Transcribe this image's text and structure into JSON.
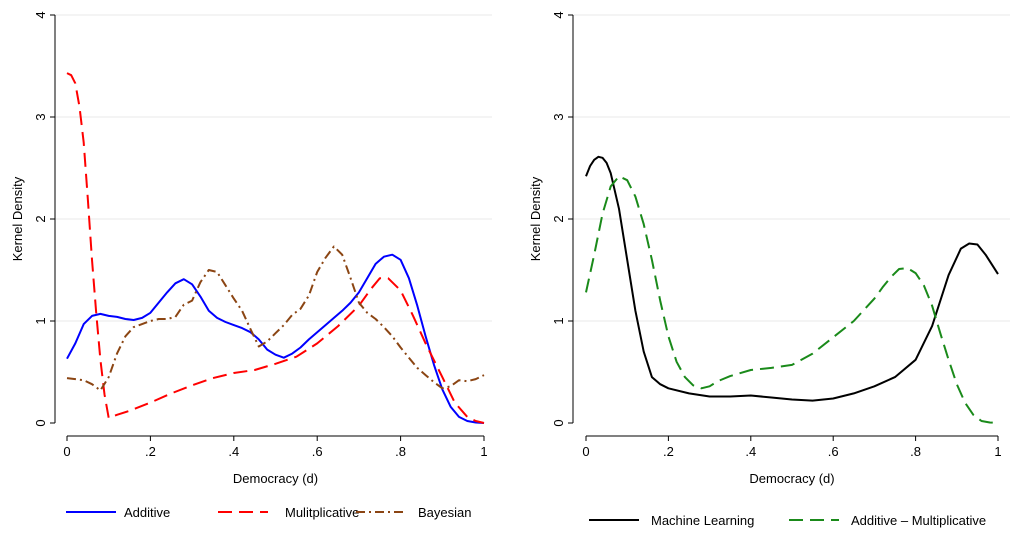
{
  "chart_data": [
    {
      "type": "line",
      "xlabel": "Democracy (d)",
      "ylabel": "Kernel Density",
      "xlim": [
        0,
        1
      ],
      "ylim": [
        0,
        4
      ],
      "x_ticks": [
        0,
        0.2,
        0.4,
        0.6,
        0.8,
        1
      ],
      "x_tick_labels": [
        "0",
        ".2",
        ".4",
        ".6",
        ".8",
        "1"
      ],
      "y_ticks": [
        0,
        1,
        2,
        3,
        4
      ],
      "y_tick_labels": [
        "0",
        "1",
        "2",
        "3",
        "4"
      ],
      "grid": "horizontal",
      "legend_position": "bottom",
      "series": [
        {
          "name": "Additive",
          "color": "#0000ff",
          "dash": "solid",
          "x": [
            0,
            0.02,
            0.04,
            0.06,
            0.08,
            0.1,
            0.12,
            0.14,
            0.16,
            0.18,
            0.2,
            0.22,
            0.24,
            0.26,
            0.28,
            0.3,
            0.32,
            0.34,
            0.36,
            0.38,
            0.4,
            0.42,
            0.44,
            0.46,
            0.48,
            0.5,
            0.52,
            0.54,
            0.56,
            0.58,
            0.6,
            0.62,
            0.64,
            0.66,
            0.68,
            0.7,
            0.72,
            0.74,
            0.76,
            0.78,
            0.8,
            0.82,
            0.84,
            0.86,
            0.88,
            0.9,
            0.92,
            0.94,
            0.96,
            0.98,
            1
          ],
          "y": [
            0.63,
            0.78,
            0.97,
            1.05,
            1.07,
            1.05,
            1.04,
            1.02,
            1.01,
            1.03,
            1.08,
            1.18,
            1.28,
            1.37,
            1.41,
            1.36,
            1.24,
            1.1,
            1.03,
            0.99,
            0.96,
            0.93,
            0.89,
            0.82,
            0.72,
            0.67,
            0.64,
            0.68,
            0.74,
            0.82,
            0.89,
            0.96,
            1.03,
            1.1,
            1.18,
            1.28,
            1.42,
            1.56,
            1.63,
            1.65,
            1.6,
            1.42,
            1.15,
            0.85,
            0.57,
            0.33,
            0.16,
            0.06,
            0.02,
            0.005,
            0
          ]
        },
        {
          "name": "Mulitplicative",
          "color": "#ff0000",
          "dash": "long",
          "x": [
            0,
            0.01,
            0.02,
            0.03,
            0.04,
            0.05,
            0.06,
            0.07,
            0.08,
            0.09,
            0.1,
            0.12,
            0.15,
            0.2,
            0.25,
            0.3,
            0.35,
            0.4,
            0.45,
            0.5,
            0.55,
            0.6,
            0.65,
            0.7,
            0.73,
            0.75,
            0.77,
            0.8,
            0.83,
            0.86,
            0.9,
            0.93,
            0.96,
            0.98,
            1
          ],
          "y": [
            3.43,
            3.41,
            3.33,
            3.1,
            2.75,
            2.2,
            1.6,
            1.08,
            0.62,
            0.28,
            0.05,
            0.08,
            0.12,
            0.2,
            0.29,
            0.37,
            0.44,
            0.49,
            0.52,
            0.58,
            0.65,
            0.78,
            0.95,
            1.15,
            1.32,
            1.42,
            1.42,
            1.3,
            1.05,
            0.78,
            0.45,
            0.2,
            0.06,
            0.02,
            0
          ]
        },
        {
          "name": "Bayesian",
          "color": "#8b4513",
          "dash": "dashdot",
          "x": [
            0,
            0.02,
            0.04,
            0.06,
            0.08,
            0.1,
            0.12,
            0.14,
            0.16,
            0.18,
            0.2,
            0.22,
            0.24,
            0.26,
            0.28,
            0.3,
            0.32,
            0.34,
            0.36,
            0.38,
            0.4,
            0.42,
            0.44,
            0.46,
            0.48,
            0.5,
            0.52,
            0.54,
            0.56,
            0.58,
            0.6,
            0.62,
            0.64,
            0.66,
            0.68,
            0.7,
            0.72,
            0.74,
            0.76,
            0.78,
            0.8,
            0.82,
            0.84,
            0.86,
            0.88,
            0.9,
            0.92,
            0.94,
            0.96,
            0.98,
            1
          ],
          "y": [
            0.44,
            0.43,
            0.42,
            0.38,
            0.32,
            0.45,
            0.68,
            0.85,
            0.94,
            0.97,
            1.0,
            1.02,
            1.02,
            1.04,
            1.16,
            1.2,
            1.38,
            1.5,
            1.48,
            1.35,
            1.22,
            1.1,
            0.92,
            0.75,
            0.8,
            0.88,
            0.96,
            1.06,
            1.12,
            1.25,
            1.48,
            1.62,
            1.73,
            1.65,
            1.42,
            1.18,
            1.08,
            1.02,
            0.94,
            0.85,
            0.74,
            0.64,
            0.54,
            0.47,
            0.4,
            0.34,
            0.36,
            0.42,
            0.41,
            0.43,
            0.47
          ]
        }
      ]
    },
    {
      "type": "line",
      "xlabel": "Democracy (d)",
      "ylabel": "Kernel Density",
      "xlim": [
        0,
        1
      ],
      "ylim": [
        0,
        4
      ],
      "x_ticks": [
        0,
        0.2,
        0.4,
        0.6,
        0.8,
        1
      ],
      "x_tick_labels": [
        "0",
        ".2",
        ".4",
        ".6",
        ".8",
        "1"
      ],
      "y_ticks": [
        0,
        1,
        2,
        3,
        4
      ],
      "y_tick_labels": [
        "0",
        "1",
        "2",
        "3",
        "4"
      ],
      "grid": "horizontal",
      "legend_position": "bottom",
      "series": [
        {
          "name": "Machine Learning",
          "color": "#000000",
          "dash": "solid",
          "x": [
            0,
            0.01,
            0.02,
            0.03,
            0.04,
            0.05,
            0.06,
            0.08,
            0.1,
            0.12,
            0.14,
            0.16,
            0.18,
            0.2,
            0.25,
            0.3,
            0.35,
            0.4,
            0.45,
            0.5,
            0.55,
            0.6,
            0.65,
            0.7,
            0.75,
            0.8,
            0.84,
            0.88,
            0.91,
            0.93,
            0.95,
            0.97,
            1
          ],
          "y": [
            2.42,
            2.52,
            2.58,
            2.61,
            2.6,
            2.55,
            2.45,
            2.1,
            1.6,
            1.1,
            0.7,
            0.45,
            0.38,
            0.34,
            0.29,
            0.26,
            0.26,
            0.27,
            0.25,
            0.23,
            0.22,
            0.24,
            0.29,
            0.36,
            0.45,
            0.62,
            0.95,
            1.45,
            1.71,
            1.76,
            1.75,
            1.65,
            1.46
          ]
        },
        {
          "name": "Additive – Multiplicative",
          "color": "#1a8a1a",
          "dash": "long",
          "x": [
            0,
            0.02,
            0.04,
            0.06,
            0.08,
            0.1,
            0.12,
            0.14,
            0.16,
            0.18,
            0.2,
            0.22,
            0.24,
            0.26,
            0.28,
            0.3,
            0.32,
            0.35,
            0.4,
            0.45,
            0.5,
            0.55,
            0.6,
            0.65,
            0.7,
            0.72,
            0.74,
            0.76,
            0.78,
            0.8,
            0.82,
            0.84,
            0.86,
            0.88,
            0.9,
            0.92,
            0.94,
            0.96,
            0.98,
            1
          ],
          "y": [
            1.28,
            1.65,
            2.05,
            2.32,
            2.42,
            2.38,
            2.22,
            1.95,
            1.6,
            1.2,
            0.85,
            0.6,
            0.45,
            0.37,
            0.34,
            0.36,
            0.41,
            0.46,
            0.52,
            0.54,
            0.57,
            0.68,
            0.84,
            1.0,
            1.22,
            1.33,
            1.43,
            1.51,
            1.52,
            1.47,
            1.35,
            1.15,
            0.88,
            0.62,
            0.38,
            0.2,
            0.08,
            0.02,
            0.005,
            0
          ]
        }
      ]
    }
  ]
}
